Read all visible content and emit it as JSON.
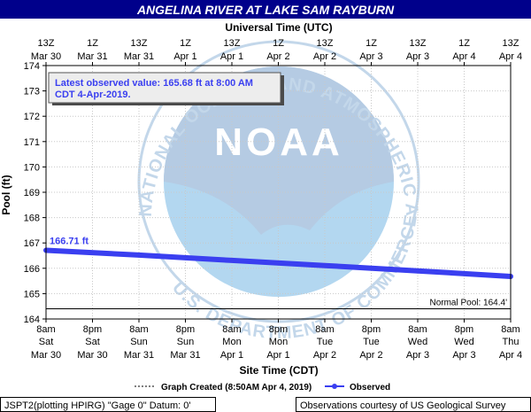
{
  "header": {
    "title": "ANGELINA RIVER AT LAKE SAM RAYBURN",
    "title_bg": "#00008b",
    "title_color": "#ffffff"
  },
  "top_axis": {
    "label": "Universal Time (UTC)",
    "ticks": [
      {
        "l1": "13Z",
        "l2": "Mar 30"
      },
      {
        "l1": "1Z",
        "l2": "Mar 31"
      },
      {
        "l1": "13Z",
        "l2": "Mar 31"
      },
      {
        "l1": "1Z",
        "l2": "Apr 1"
      },
      {
        "l1": "13Z",
        "l2": "Apr 1"
      },
      {
        "l1": "1Z",
        "l2": "Apr 2"
      },
      {
        "l1": "13Z",
        "l2": "Apr 2"
      },
      {
        "l1": "1Z",
        "l2": "Apr 3"
      },
      {
        "l1": "13Z",
        "l2": "Apr 3"
      },
      {
        "l1": "1Z",
        "l2": "Apr 4"
      },
      {
        "l1": "13Z",
        "l2": "Apr 4"
      }
    ]
  },
  "bottom_axis": {
    "label": "Site Time (CDT)",
    "ticks": [
      {
        "l1": "8am",
        "l2": "Sat",
        "l3": "Mar 30"
      },
      {
        "l1": "8pm",
        "l2": "Sat",
        "l3": "Mar 30"
      },
      {
        "l1": "8am",
        "l2": "Sun",
        "l3": "Mar 31"
      },
      {
        "l1": "8pm",
        "l2": "Sun",
        "l3": "Mar 31"
      },
      {
        "l1": "8am",
        "l2": "Mon",
        "l3": "Apr 1"
      },
      {
        "l1": "8pm",
        "l2": "Mon",
        "l3": "Apr 1"
      },
      {
        "l1": "8am",
        "l2": "Tue",
        "l3": "Apr 2"
      },
      {
        "l1": "8pm",
        "l2": "Tue",
        "l3": "Apr 2"
      },
      {
        "l1": "8am",
        "l2": "Wed",
        "l3": "Apr 3"
      },
      {
        "l1": "8pm",
        "l2": "Wed",
        "l3": "Apr 3"
      },
      {
        "l1": "8am",
        "l2": "Thu",
        "l3": "Apr 4"
      }
    ]
  },
  "y_axis": {
    "label": "Pool (ft)",
    "ticks": [
      "174",
      "173",
      "172",
      "171",
      "170",
      "169",
      "168",
      "167",
      "166",
      "165",
      "164"
    ]
  },
  "info_box": {
    "line1": "Latest observed value: 165.68 ft at 8:00 AM",
    "line2": "CDT 4-Apr-2019."
  },
  "start_label": "166.71 ft",
  "normal_pool_label": "Normal Pool: 164.4'",
  "watermark": {
    "ring_text": "NATIONAL OCEANIC AND ATMOSPHERIC ADMINISTRATION",
    "bottom_text": "U.S. DEPARTMENT OF COMMERCE",
    "center": "NOAA"
  },
  "legend": {
    "created": "Graph Created (8:50AM Apr 4, 2019)",
    "observed": "Observed"
  },
  "footer": {
    "left": "JSPT2(plotting HPIRG) \"Gage 0\" Datum: 0'",
    "right": "Observations courtesy of US Geological Survey"
  },
  "colors": {
    "observed": "#3a3ff0",
    "normal_pool": "#000000",
    "info_text": "#3a3ff0",
    "noaa_light": "#c3d7ea",
    "noaa_dark": "#b3d7f0"
  },
  "chart_data": {
    "type": "line",
    "title": "ANGELINA RIVER AT LAKE SAM RAYBURN",
    "xlabel": "Site Time (CDT)",
    "x2label": "Universal Time (UTC)",
    "ylabel": "Pool (ft)",
    "xlim": [
      "2019-03-30 08:00",
      "2019-04-04 08:00"
    ],
    "ylim": [
      164,
      174
    ],
    "grid": true,
    "legend_position": "bottom",
    "series": [
      {
        "name": "Observed",
        "x": [
          "2019-03-30 08:00",
          "2019-03-31 08:00",
          "2019-04-01 08:00",
          "2019-04-02 08:00",
          "2019-04-03 08:00",
          "2019-04-04 08:00"
        ],
        "values": [
          166.71,
          166.52,
          166.31,
          166.11,
          165.9,
          165.68
        ]
      }
    ],
    "reference_lines": [
      {
        "label": "Normal Pool: 164.4'",
        "y": 164.4
      }
    ]
  }
}
